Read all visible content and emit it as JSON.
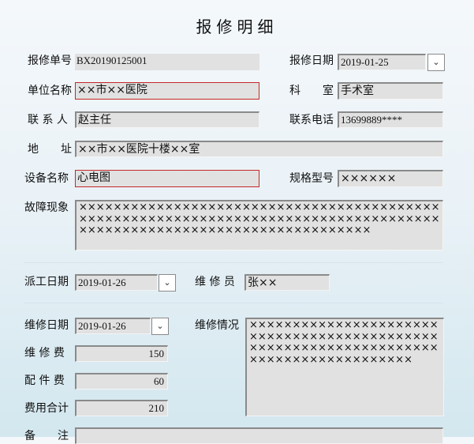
{
  "title": "报修明细",
  "fields": {
    "repair_no": {
      "label": "报修单号",
      "value": "BX20190125001"
    },
    "repair_date": {
      "label": "报修日期",
      "value": "2019-01-25"
    },
    "unit_name": {
      "label": "单位名称",
      "value": "××市××医院"
    },
    "department": {
      "label": "科　　室",
      "value": "手术室"
    },
    "contact": {
      "label": "联 系 人",
      "value": "赵主任"
    },
    "phone": {
      "label": "联系电话",
      "value": "13699889****"
    },
    "address": {
      "label": "地　　址",
      "value": "××市××医院十楼××室"
    },
    "device_name": {
      "label": "设备名称",
      "value": "心电图"
    },
    "model": {
      "label": "规格型号",
      "value": "××××××"
    },
    "fault": {
      "label": "故障现象",
      "value": "××××××××××××××××××××××××××××××××××××××××××××××××××××××××××××××××××××××××××××××××××××××××××××××××××××××××××××××××××××××"
    },
    "dispatch_date": {
      "label": "派工日期",
      "value": "2019-01-26"
    },
    "technician": {
      "label": "维 修 员",
      "value": "张××"
    },
    "service_date": {
      "label": "维修日期",
      "value": "2019-01-26"
    },
    "service_desc": {
      "label": "维修情况",
      "value": "×××××××××××××××××××××××××××××××××××××××××××××××××××××××××××××××××××××××××××××××××××××"
    },
    "service_fee": {
      "label": "维 修 费",
      "value": "150"
    },
    "parts_fee": {
      "label": "配 件 费",
      "value": "60"
    },
    "total_fee": {
      "label": "费用合计",
      "value": "210"
    },
    "remark": {
      "label": "备　　注",
      "value": ""
    }
  },
  "icons": {
    "dropdown": "chevron-down-icon"
  },
  "colors": {
    "required_border": "#c62828",
    "input_bg": "#e1e1e1"
  }
}
